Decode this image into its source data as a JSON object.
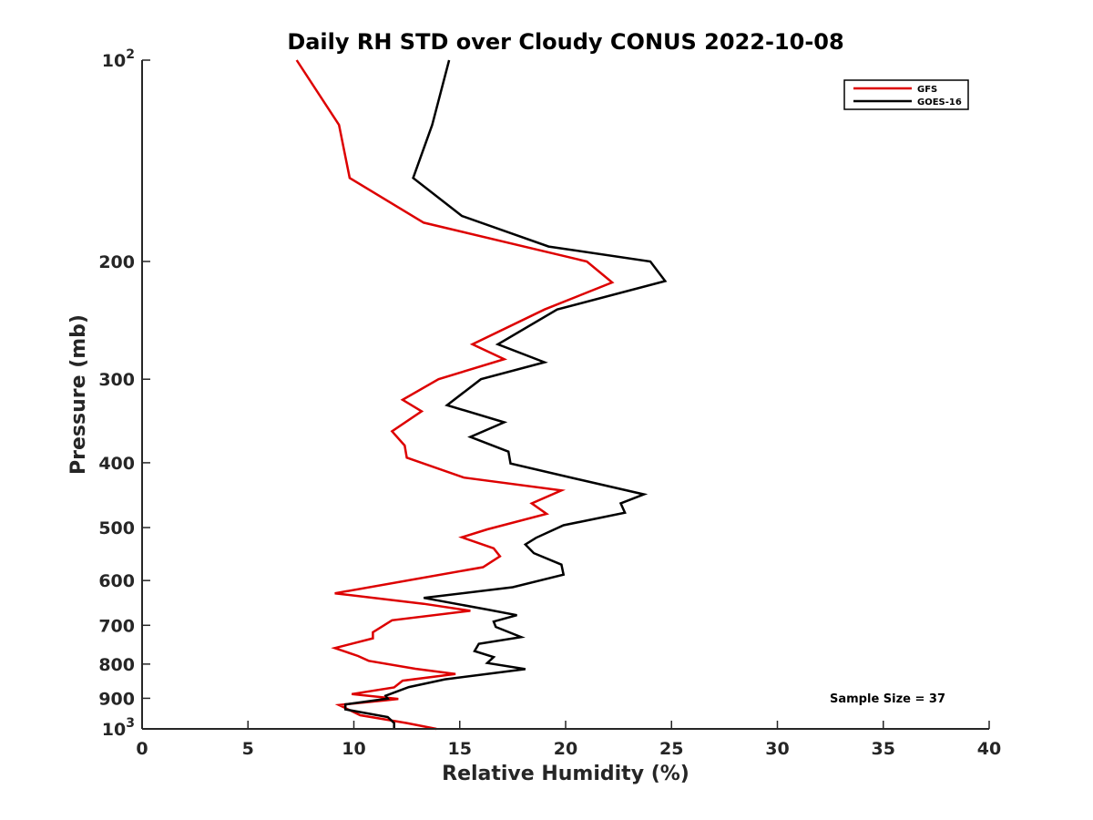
{
  "chart_data": {
    "type": "line",
    "title": "Daily RH STD over Cloudy CONUS 2022-10-08",
    "xlabel": "Relative Humidity (%)",
    "ylabel": "Pressure (mb)",
    "xlim": [
      0,
      40
    ],
    "ylim": [
      100,
      1000
    ],
    "y_scale": "log",
    "y_reversed": true,
    "x_ticks": [
      "0",
      "5",
      "10",
      "15",
      "20",
      "25",
      "30",
      "35",
      "40"
    ],
    "y_ticks": [
      {
        "value": 100,
        "label": "10",
        "sup": "2"
      },
      {
        "value": 200,
        "label": "200",
        "sup": ""
      },
      {
        "value": 300,
        "label": "300",
        "sup": ""
      },
      {
        "value": 400,
        "label": "400",
        "sup": ""
      },
      {
        "value": 500,
        "label": "500",
        "sup": ""
      },
      {
        "value": 600,
        "label": "600",
        "sup": ""
      },
      {
        "value": 700,
        "label": "700",
        "sup": ""
      },
      {
        "value": 800,
        "label": "800",
        "sup": ""
      },
      {
        "value": 900,
        "label": "900",
        "sup": ""
      },
      {
        "value": 1000,
        "label": "10",
        "sup": "3"
      }
    ],
    "grid": false,
    "legend_position": "top-right",
    "annotation": "Sample Size = 37",
    "series": [
      {
        "name": "GFS",
        "color": "#dd0000",
        "points": [
          [
            7.3,
            100
          ],
          [
            9.3,
            125
          ],
          [
            9.8,
            150
          ],
          [
            13.3,
            175
          ],
          [
            21.0,
            200
          ],
          [
            22.2,
            215
          ],
          [
            19.0,
            236
          ],
          [
            15.6,
            266
          ],
          [
            17.1,
            280
          ],
          [
            14.0,
            300
          ],
          [
            12.3,
            322
          ],
          [
            13.2,
            335
          ],
          [
            11.8,
            359
          ],
          [
            12.4,
            377
          ],
          [
            12.5,
            393
          ],
          [
            15.2,
            421
          ],
          [
            19.8,
            440
          ],
          [
            18.4,
            460
          ],
          [
            19.1,
            477
          ],
          [
            16.3,
            503
          ],
          [
            15.1,
            517
          ],
          [
            16.6,
            537
          ],
          [
            16.9,
            552
          ],
          [
            16.1,
            573
          ],
          [
            9.1,
            627
          ],
          [
            13.3,
            650
          ],
          [
            15.5,
            666
          ],
          [
            11.8,
            688
          ],
          [
            10.9,
            717
          ],
          [
            10.9,
            732
          ],
          [
            9.1,
            757
          ],
          [
            10.2,
            778
          ],
          [
            10.7,
            791
          ],
          [
            12.9,
            813
          ],
          [
            14.8,
            828
          ],
          [
            12.3,
            847
          ],
          [
            11.9,
            867
          ],
          [
            9.9,
            887
          ],
          [
            12.1,
            902
          ],
          [
            11.4,
            907
          ],
          [
            9.3,
            921
          ],
          [
            10.3,
            954
          ],
          [
            12.5,
            980
          ],
          [
            13.9,
            1000
          ]
        ]
      },
      {
        "name": "GOES-16",
        "color": "#000000",
        "points": [
          [
            14.5,
            100
          ],
          [
            13.7,
            125
          ],
          [
            12.8,
            150
          ],
          [
            15.1,
            171
          ],
          [
            19.2,
            190
          ],
          [
            24.0,
            200
          ],
          [
            24.7,
            214
          ],
          [
            19.6,
            236
          ],
          [
            16.8,
            266
          ],
          [
            19.0,
            283
          ],
          [
            16.0,
            300
          ],
          [
            14.4,
            328
          ],
          [
            17.1,
            348
          ],
          [
            15.5,
            366
          ],
          [
            17.3,
            385
          ],
          [
            17.4,
            401
          ],
          [
            20.4,
            422
          ],
          [
            23.7,
            446
          ],
          [
            22.6,
            460
          ],
          [
            22.8,
            475
          ],
          [
            19.9,
            496
          ],
          [
            18.6,
            518
          ],
          [
            18.1,
            530
          ],
          [
            18.5,
            546
          ],
          [
            19.8,
            568
          ],
          [
            19.9,
            588
          ],
          [
            17.5,
            614
          ],
          [
            13.3,
            637
          ],
          [
            16.3,
            663
          ],
          [
            17.7,
            676
          ],
          [
            16.6,
            691
          ],
          [
            16.7,
            704
          ],
          [
            17.9,
            729
          ],
          [
            15.9,
            746
          ],
          [
            15.7,
            765
          ],
          [
            16.6,
            781
          ],
          [
            16.3,
            797
          ],
          [
            18.1,
            814
          ],
          [
            14.3,
            843
          ],
          [
            12.6,
            866
          ],
          [
            11.5,
            892
          ],
          [
            11.6,
            901
          ],
          [
            9.6,
            919
          ],
          [
            9.6,
            935
          ],
          [
            11.6,
            960
          ],
          [
            11.9,
            980
          ],
          [
            11.9,
            1000
          ]
        ]
      }
    ]
  }
}
